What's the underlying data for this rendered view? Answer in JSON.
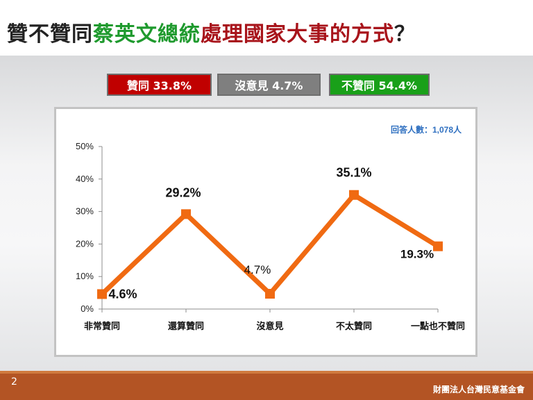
{
  "title": {
    "part1": "贊不贊同",
    "part2": "蔡英文總統",
    "part3": "處理國家大事的方式",
    "part4": "？"
  },
  "summary": {
    "agree": "贊同 33.8%",
    "neutral": "沒意見 4.7%",
    "disagree": "不贊同 54.4%"
  },
  "respondents": "回答人數：1,078人",
  "colors": {
    "line": "#f06a12",
    "agree_box": "#c00000",
    "neutral_box": "#7f7f7f",
    "disagree_box": "#19a019"
  },
  "chart_data": {
    "type": "line",
    "categories": [
      "非常贊同",
      "還算贊同",
      "沒意見",
      "不太贊同",
      "一點也不贊同"
    ],
    "values": [
      4.6,
      29.2,
      4.7,
      35.1,
      19.3
    ],
    "data_labels": [
      "4.6%",
      "29.2%",
      "4.7%",
      "35.1%",
      "19.3%"
    ],
    "ylim": [
      0,
      50
    ],
    "yticks": [
      "0%",
      "10%",
      "20%",
      "30%",
      "40%",
      "50%"
    ],
    "ytick_values": [
      0,
      10,
      20,
      30,
      40,
      50
    ],
    "grid": false,
    "xlabel": "",
    "ylabel": ""
  },
  "footer": {
    "page": "2",
    "org": "財團法人台灣民意基金會"
  }
}
